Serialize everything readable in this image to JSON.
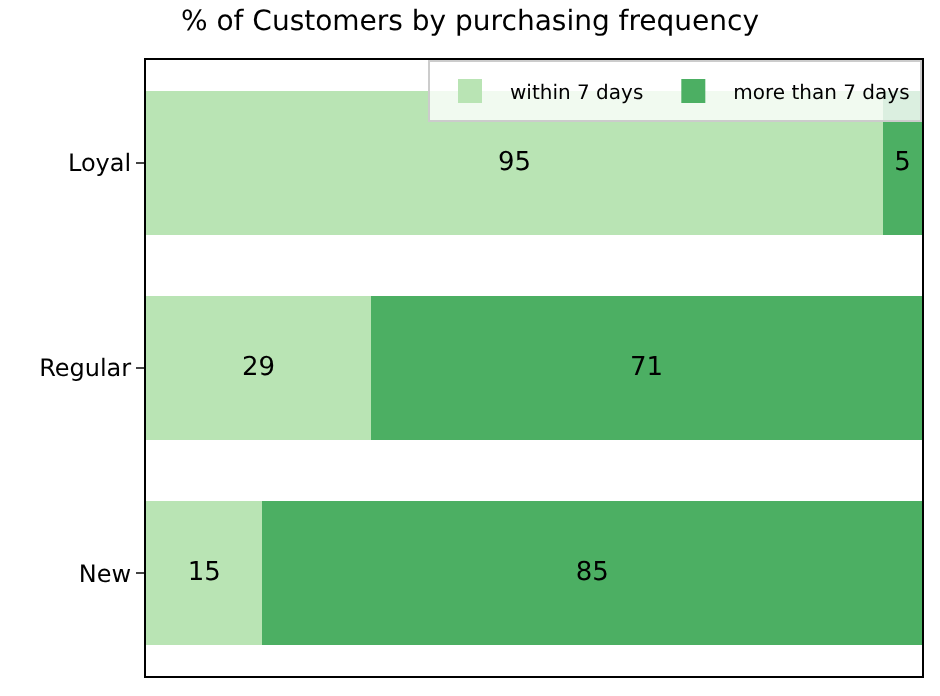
{
  "chart_data": {
    "type": "bar",
    "orientation": "horizontal",
    "stacked": true,
    "title": "% of Customers by purchasing frequency",
    "categories": [
      "Loyal",
      "Regular",
      "New"
    ],
    "series": [
      {
        "name": "within 7 days",
        "color": "#b9e4b4",
        "values": [
          95,
          29,
          15
        ]
      },
      {
        "name": "more than 7 days",
        "color": "#4caf63",
        "values": [
          5,
          71,
          85
        ]
      }
    ],
    "xlim": [
      0,
      100
    ],
    "tick_labels": "y",
    "data_labels": true,
    "legend": "top right"
  }
}
